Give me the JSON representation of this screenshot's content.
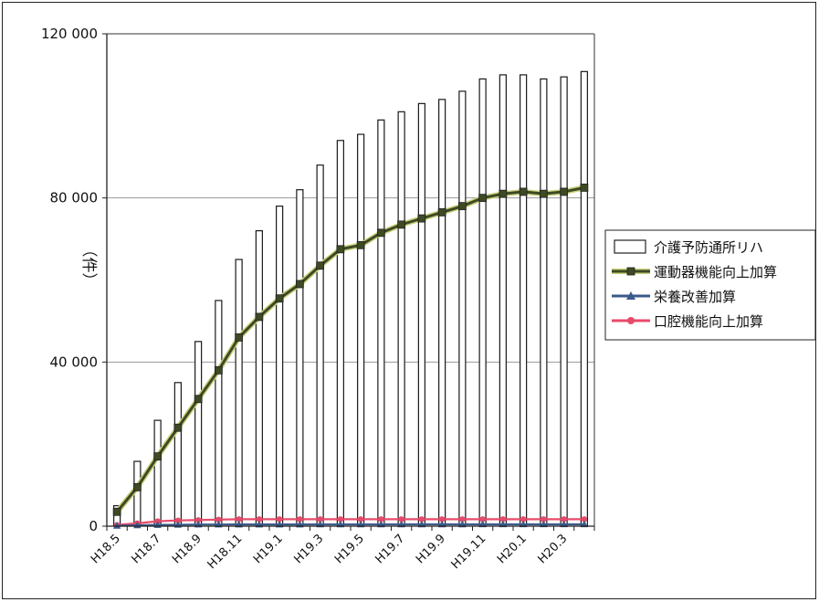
{
  "chart_data": {
    "type": "bar",
    "ylabel": "（件）",
    "ylim": [
      0,
      120000
    ],
    "yticks": [
      {
        "value": 0,
        "label": "0"
      },
      {
        "value": 40000,
        "label": "40 000"
      },
      {
        "value": 80000,
        "label": "80 000"
      },
      {
        "value": 120000,
        "label": "120 000"
      }
    ],
    "gridlines": [
      40000,
      80000
    ],
    "legend_position": "right",
    "categories": [
      "H18.5",
      "H18.6",
      "H18.7",
      "H18.8",
      "H18.9",
      "H18.10",
      "H18.11",
      "H18.12",
      "H19.1",
      "H19.2",
      "H19.3",
      "H19.4",
      "H19.5",
      "H19.6",
      "H19.7",
      "H19.8",
      "H19.9",
      "H19.10",
      "H19.11",
      "H19.12",
      "H20.1",
      "H20.2",
      "H20.3",
      "H20.4"
    ],
    "xtick_labels": [
      "H18.5",
      "",
      "H18.7",
      "",
      "H18.9",
      "",
      "H18.11",
      "",
      "H19.1",
      "",
      "H19.3",
      "",
      "H19.5",
      "",
      "H19.7",
      "",
      "H19.9",
      "",
      "H19.11",
      "",
      "H20.1",
      "",
      "H20.3",
      ""
    ],
    "series": [
      {
        "name": "介護予防通所リハ",
        "kind": "bar",
        "color": "#ffffff",
        "values": [
          5000,
          15800,
          25800,
          35000,
          45000,
          55000,
          65000,
          72000,
          78000,
          82000,
          88000,
          94000,
          95500,
          99000,
          101000,
          103000,
          104000,
          106000,
          109000,
          110000,
          110000,
          109000,
          109500,
          110800
        ]
      },
      {
        "name": "運動器機能向上加算",
        "kind": "line",
        "color": "#3d4a24",
        "marker": "square",
        "values": [
          3500,
          9500,
          17000,
          24000,
          31000,
          38000,
          46000,
          51000,
          55500,
          59000,
          63500,
          67500,
          68500,
          71500,
          73500,
          75000,
          76500,
          78000,
          80000,
          81000,
          81500,
          81000,
          81500,
          82500
        ]
      },
      {
        "name": "栄養改善加算",
        "kind": "line",
        "color": "#3a5a8a",
        "marker": "triangle",
        "values": [
          100,
          200,
          300,
          350,
          400,
          400,
          420,
          420,
          420,
          420,
          430,
          430,
          430,
          430,
          440,
          440,
          440,
          440,
          450,
          450,
          450,
          450,
          450,
          450
        ]
      },
      {
        "name": "口腔機能向上加算",
        "kind": "line",
        "color": "#e84a6a",
        "marker": "circle",
        "values": [
          300,
          700,
          1200,
          1400,
          1500,
          1600,
          1700,
          1700,
          1700,
          1700,
          1700,
          1700,
          1700,
          1700,
          1700,
          1700,
          1700,
          1700,
          1700,
          1700,
          1700,
          1700,
          1700,
          1700
        ]
      }
    ]
  }
}
